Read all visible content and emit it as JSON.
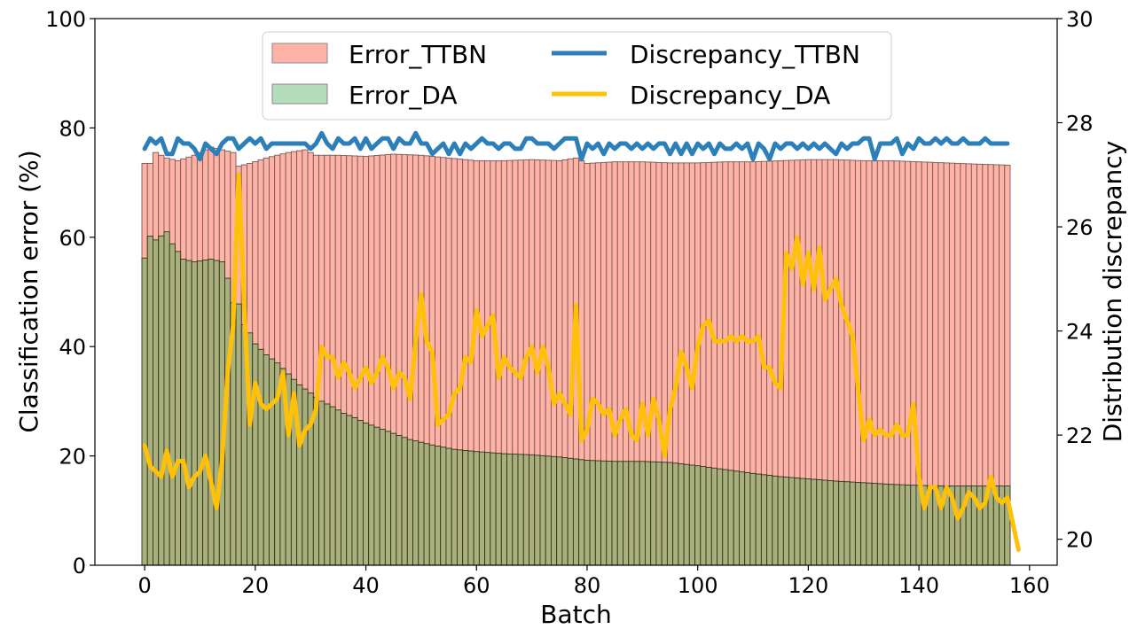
{
  "chart_data": {
    "type": "bar+line",
    "title": "",
    "xlabel": "Batch",
    "ylabel_left": "Classification error (%)",
    "ylabel_right": "Distribution discrepancy",
    "xlim": [
      -9,
      165
    ],
    "ylim_left": [
      0,
      100
    ],
    "ylim_right": [
      19.5,
      30
    ],
    "xticks": [
      0,
      20,
      40,
      60,
      80,
      100,
      120,
      140,
      160
    ],
    "yticks_left": [
      0,
      20,
      40,
      60,
      80,
      100
    ],
    "yticks_right": [
      20,
      22,
      24,
      26,
      28,
      30
    ],
    "legend_position": "top-center",
    "colors": {
      "error_ttbn": "#ffb3a7",
      "error_da": "#b4ddbc",
      "overlap": "#aab07c",
      "discrepancy_ttbn": "#2c7fb8",
      "discrepancy_da": "#ffc107"
    },
    "bar_keyframes": {
      "error_ttbn": [
        [
          0,
          73.5
        ],
        [
          1,
          73.5
        ],
        [
          2,
          75.5
        ],
        [
          4,
          74.5
        ],
        [
          6,
          74
        ],
        [
          9,
          75
        ],
        [
          12,
          76.5
        ],
        [
          14,
          76
        ],
        [
          16,
          75.5
        ],
        [
          17,
          73
        ],
        [
          19,
          73.5
        ],
        [
          22,
          74.5
        ],
        [
          26,
          75.5
        ],
        [
          29,
          76
        ],
        [
          31,
          75
        ],
        [
          35,
          75
        ],
        [
          40,
          74.8
        ],
        [
          45,
          75.2
        ],
        [
          50,
          75
        ],
        [
          55,
          74.5
        ],
        [
          60,
          74
        ],
        [
          65,
          74
        ],
        [
          70,
          74.2
        ],
        [
          75,
          74
        ],
        [
          78,
          74.5
        ],
        [
          80,
          73.5
        ],
        [
          85,
          73.8
        ],
        [
          90,
          73.8
        ],
        [
          95,
          73.6
        ],
        [
          100,
          73.6
        ],
        [
          105,
          73.8
        ],
        [
          110,
          73.8
        ],
        [
          115,
          74
        ],
        [
          120,
          74.2
        ],
        [
          125,
          74.2
        ],
        [
          130,
          74
        ],
        [
          135,
          74
        ],
        [
          140,
          73.8
        ],
        [
          145,
          73.6
        ],
        [
          150,
          73.4
        ],
        [
          156,
          73.2
        ]
      ],
      "error_da": [
        [
          0,
          56.2
        ],
        [
          1,
          60.2
        ],
        [
          2,
          59.5
        ],
        [
          4,
          61
        ],
        [
          5,
          58.8
        ],
        [
          7,
          56
        ],
        [
          9,
          55.5
        ],
        [
          12,
          56
        ],
        [
          14,
          55.5
        ],
        [
          15,
          52.5
        ],
        [
          16,
          48
        ],
        [
          17,
          47.8
        ],
        [
          18,
          44
        ],
        [
          19,
          42.5
        ],
        [
          20,
          40.5
        ],
        [
          22,
          38.5
        ],
        [
          24,
          37
        ],
        [
          26,
          35
        ],
        [
          28,
          33
        ],
        [
          30,
          31.5
        ],
        [
          32,
          30
        ],
        [
          34,
          29
        ],
        [
          36,
          27.8
        ],
        [
          38,
          27
        ],
        [
          40,
          26
        ],
        [
          44,
          24.5
        ],
        [
          48,
          23
        ],
        [
          52,
          22
        ],
        [
          56,
          21.2
        ],
        [
          60,
          20.8
        ],
        [
          65,
          20.4
        ],
        [
          70,
          20.2
        ],
        [
          75,
          19.8
        ],
        [
          80,
          19.2
        ],
        [
          85,
          19
        ],
        [
          90,
          19
        ],
        [
          95,
          18.8
        ],
        [
          100,
          18.2
        ],
        [
          105,
          17.5
        ],
        [
          110,
          16.8
        ],
        [
          115,
          16.2
        ],
        [
          120,
          15.8
        ],
        [
          125,
          15.4
        ],
        [
          130,
          15.1
        ],
        [
          135,
          14.8
        ],
        [
          140,
          14.6
        ],
        [
          145,
          14.5
        ],
        [
          150,
          14.5
        ],
        [
          156,
          14.5
        ]
      ]
    },
    "series": [
      {
        "name": "Error_TTBN",
        "kind": "bar",
        "axis": "left"
      },
      {
        "name": "Error_DA",
        "kind": "bar",
        "axis": "left"
      },
      {
        "name": "Discrepancy_TTBN",
        "kind": "line",
        "axis": "right",
        "values": [
          27.5,
          27.7,
          27.6,
          27.7,
          27.4,
          27.4,
          27.7,
          27.6,
          27.6,
          27.5,
          27.3,
          27.6,
          27.5,
          27.4,
          27.6,
          27.7,
          27.7,
          27.5,
          27.6,
          27.7,
          27.6,
          27.7,
          27.5,
          27.6,
          27.6,
          27.6,
          27.6,
          27.6,
          27.6,
          27.6,
          27.5,
          27.6,
          27.8,
          27.6,
          27.5,
          27.7,
          27.6,
          27.6,
          27.7,
          27.5,
          27.7,
          27.5,
          27.6,
          27.7,
          27.7,
          27.5,
          27.7,
          27.6,
          27.6,
          27.8,
          27.6,
          27.6,
          27.4,
          27.5,
          27.6,
          27.4,
          27.6,
          27.4,
          27.6,
          27.5,
          27.6,
          27.7,
          27.6,
          27.6,
          27.5,
          27.6,
          27.6,
          27.5,
          27.5,
          27.7,
          27.7,
          27.6,
          27.6,
          27.6,
          27.5,
          27.6,
          27.7,
          27.7,
          27.7,
          27.3,
          27.6,
          27.5,
          27.6,
          27.4,
          27.6,
          27.5,
          27.6,
          27.6,
          27.5,
          27.6,
          27.5,
          27.6,
          27.5,
          27.6,
          27.6,
          27.4,
          27.6,
          27.4,
          27.6,
          27.4,
          27.6,
          27.5,
          27.6,
          27.4,
          27.6,
          27.5,
          27.5,
          27.6,
          27.5,
          27.6,
          27.3,
          27.6,
          27.5,
          27.3,
          27.6,
          27.5,
          27.6,
          27.6,
          27.5,
          27.6,
          27.5,
          27.6,
          27.5,
          27.6,
          27.5,
          27.4,
          27.6,
          27.5,
          27.6,
          27.6,
          27.7,
          27.7,
          27.3,
          27.6,
          27.6,
          27.6,
          27.7,
          27.4,
          27.6,
          27.5,
          27.7,
          27.6,
          27.6,
          27.7,
          27.6,
          27.7,
          27.6,
          27.6,
          27.7,
          27.6,
          27.6,
          27.6,
          27.7,
          27.6,
          27.6,
          27.6,
          27.6
        ]
      },
      {
        "name": "Discrepancy_DA",
        "kind": "line",
        "axis": "right",
        "values": [
          21.8,
          21.4,
          21.3,
          21.2,
          21.7,
          21.2,
          21.5,
          21.5,
          21.0,
          21.2,
          21.3,
          21.6,
          21.1,
          20.6,
          21.5,
          23.2,
          24.1,
          27.0,
          24.5,
          22.2,
          23.0,
          22.6,
          22.5,
          22.6,
          22.7,
          23.2,
          22.0,
          22.8,
          21.8,
          22.1,
          22.2,
          22.5,
          23.7,
          23.5,
          23.5,
          23.1,
          23.4,
          23.2,
          22.9,
          23.1,
          23.3,
          23.0,
          23.2,
          23.5,
          23.3,
          22.9,
          23.2,
          23.1,
          22.7,
          23.8,
          24.7,
          23.8,
          23.6,
          22.2,
          22.3,
          22.4,
          22.8,
          22.9,
          23.5,
          23.4,
          24.4,
          23.9,
          24.1,
          24.3,
          23.1,
          23.5,
          23.3,
          23.2,
          23.1,
          23.5,
          23.7,
          23.2,
          23.7,
          23.3,
          22.6,
          22.8,
          22.6,
          22.4,
          24.5,
          21.9,
          22.1,
          22.7,
          22.6,
          22.4,
          22.5,
          22.0,
          22.3,
          22.5,
          22.0,
          21.9,
          22.6,
          22.0,
          22.7,
          22.3,
          21.6,
          22.5,
          22.9,
          23.6,
          23.3,
          22.9,
          23.7,
          24.1,
          24.2,
          23.8,
          23.8,
          23.8,
          23.9,
          23.8,
          23.9,
          23.8,
          23.8,
          23.9,
          23.3,
          23.3,
          23.0,
          22.9,
          25.5,
          25.2,
          25.8,
          24.9,
          25.5,
          24.8,
          25.6,
          24.6,
          24.8,
          25.0,
          24.5,
          24.2,
          23.9,
          22.9,
          21.9,
          22.3,
          22.0,
          22.1,
          22.0,
          22.0,
          22.2,
          22.0,
          22.0,
          22.6,
          21.2,
          20.6,
          21.0,
          21.0,
          20.6,
          21.0,
          20.8,
          20.4,
          20.6,
          20.9,
          20.8,
          20.6,
          20.7,
          21.2,
          20.8,
          20.7,
          20.8,
          20.3,
          19.8
        ]
      }
    ],
    "n_bars": 157
  },
  "legend": {
    "error_ttbn": "Error_TTBN",
    "error_da": "Error_DA",
    "discrepancy_ttbn": "Discrepancy_TTBN",
    "discrepancy_da": "Discrepancy_DA"
  },
  "axis_text": {
    "xlabel": "Batch",
    "ylabel_left": "Classification error (%)",
    "ylabel_right": "Distribution discrepancy"
  }
}
